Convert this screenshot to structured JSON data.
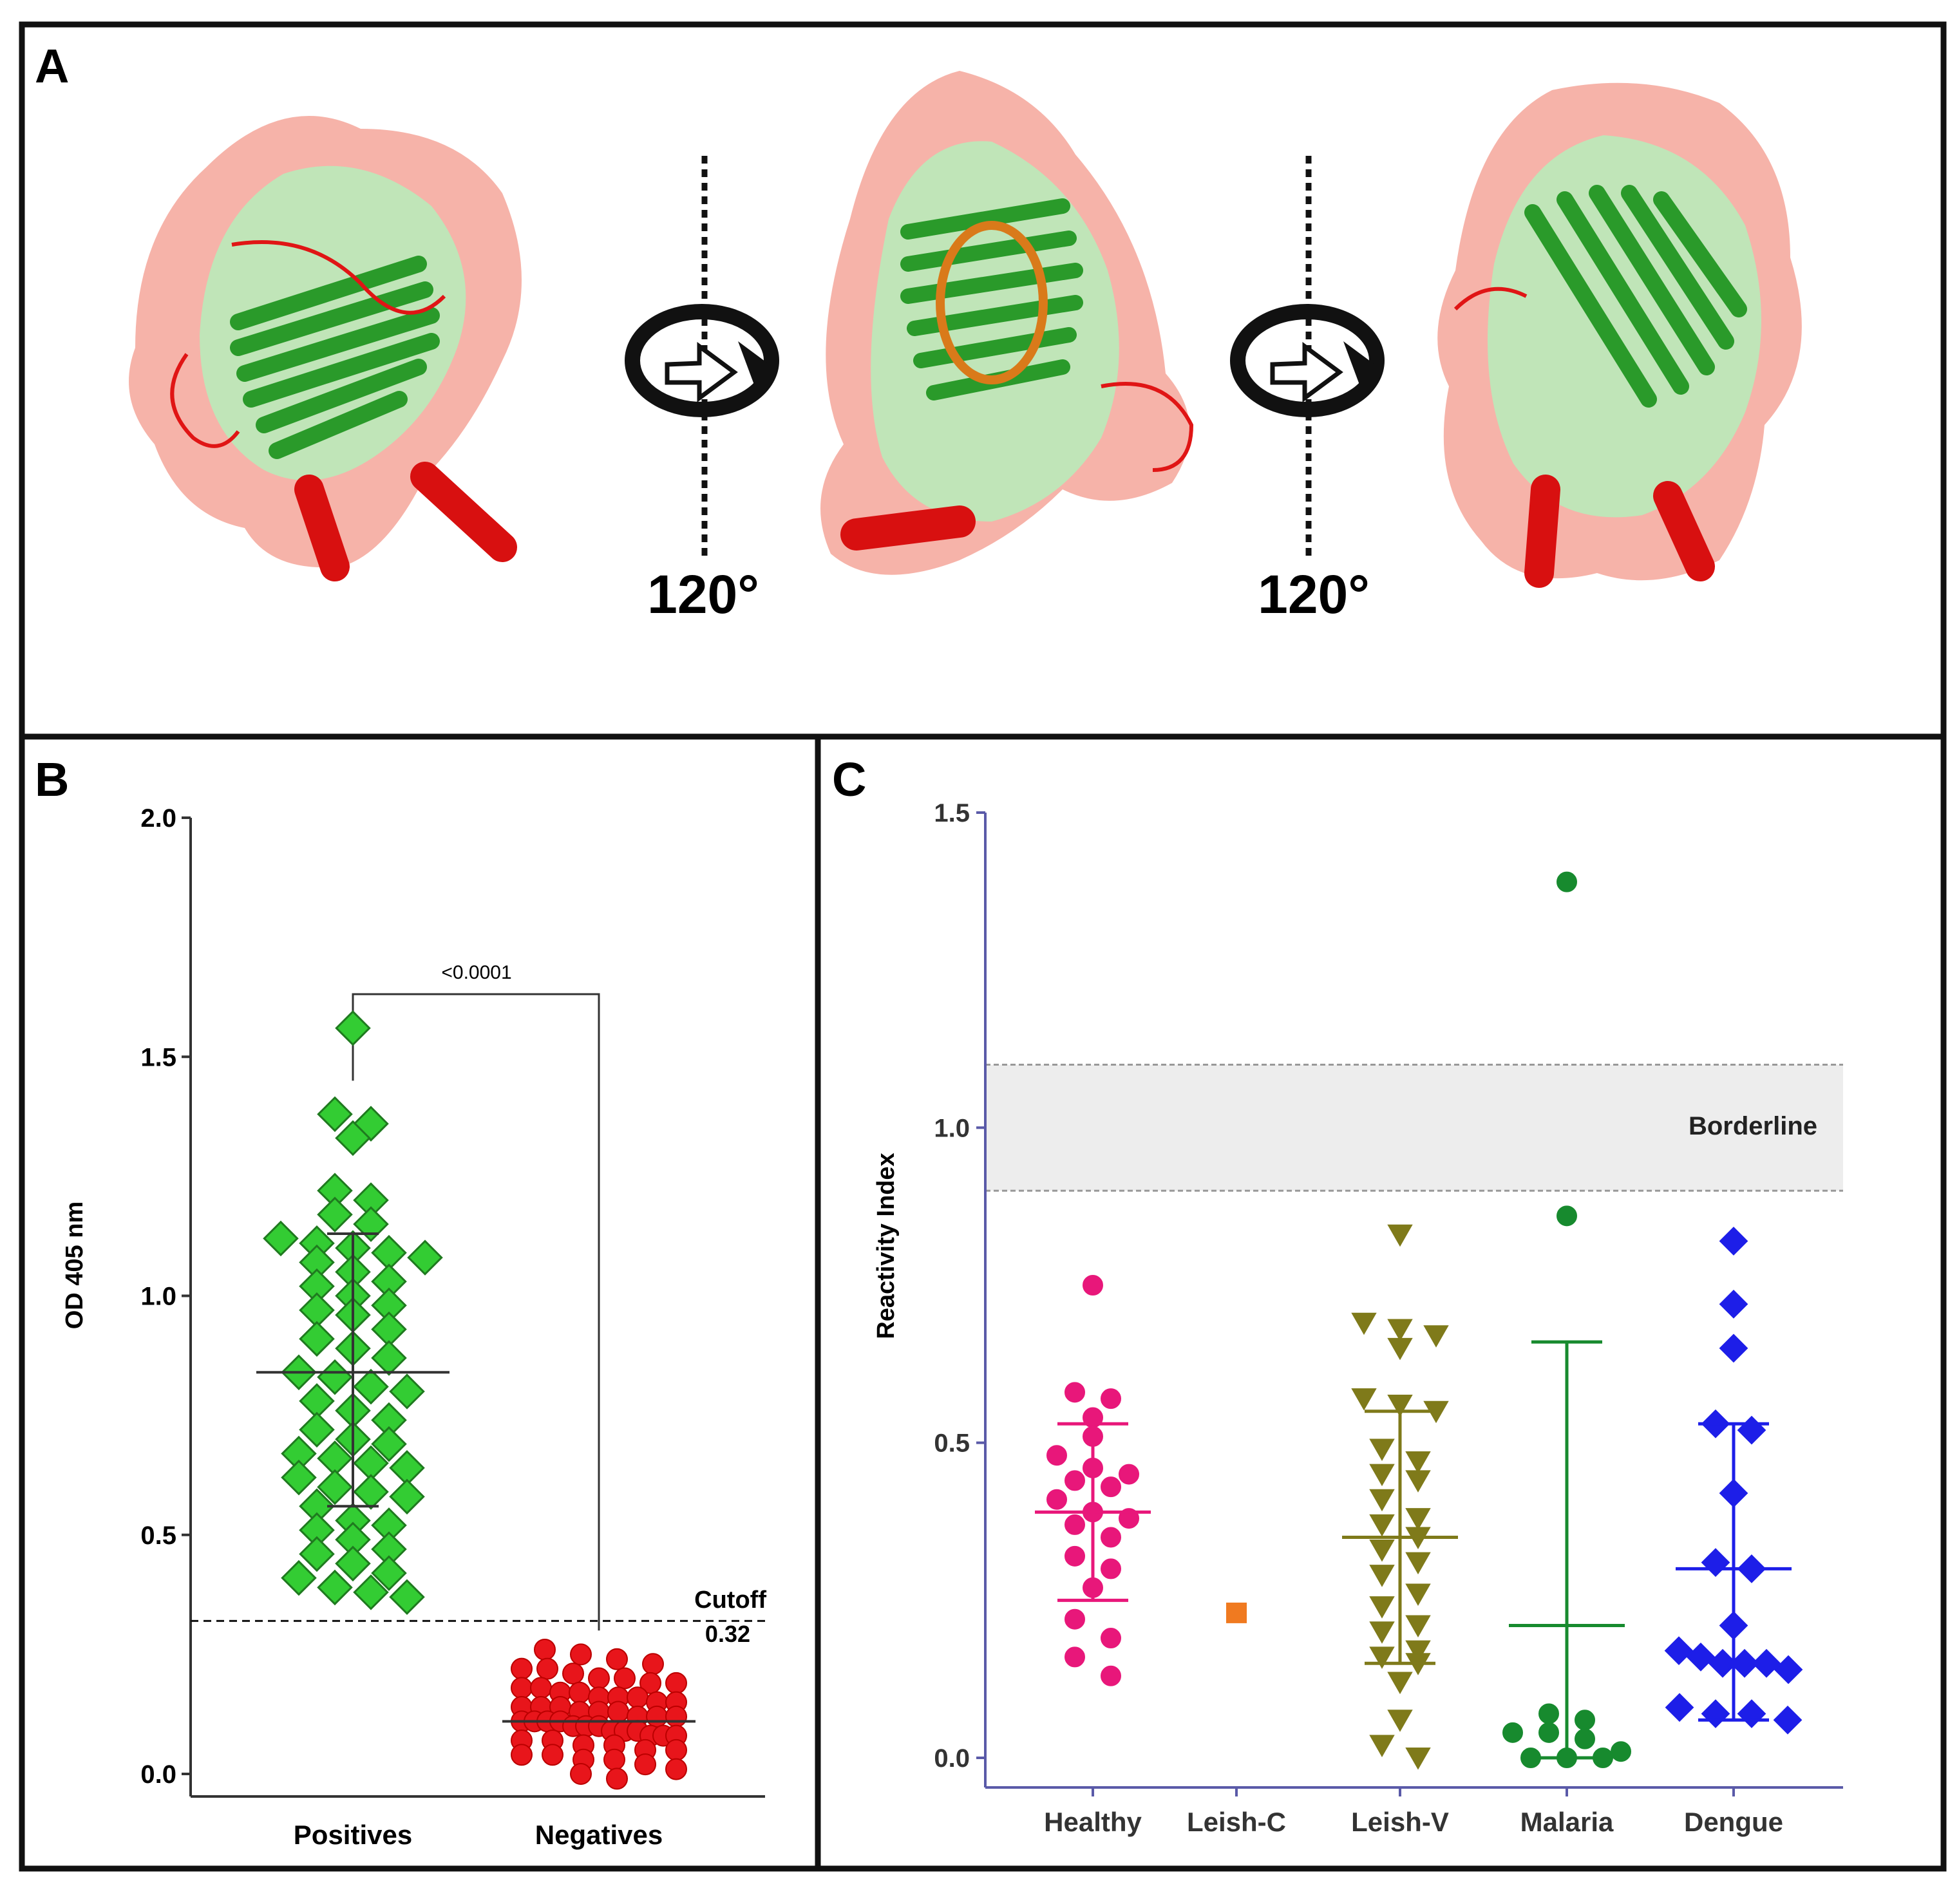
{
  "panel_a": {
    "label": "A",
    "rotation_labels": [
      "120°",
      "120°"
    ]
  },
  "panel_b": {
    "label": "B",
    "ylabel": "OD 405 nm",
    "cutoff_label": "Cutoff",
    "cutoff_value_label": "0.32",
    "significance_label": "<0.0001"
  },
  "panel_c": {
    "label": "C",
    "ylabel": "Reactivity Index",
    "band_label": "Borderline"
  },
  "chart_data": [
    {
      "panel": "B",
      "type": "scatter",
      "ylabel": "OD 405 nm",
      "ylim": [
        0,
        2.0
      ],
      "yticks": [
        "0.0",
        "0.5",
        "1.0",
        "1.5",
        "2.0"
      ],
      "categories": [
        "Positives",
        "Negatives"
      ],
      "cutoff": 0.32,
      "cutoff_label": "Cutoff",
      "annotation": "<0.0001",
      "colors": {
        "Positives": "#33cc33",
        "Negatives": "#e8151b"
      },
      "series": [
        {
          "category": "Positives",
          "marker": "diamond",
          "mean": 0.84,
          "sd_low": 0.56,
          "sd_high": 1.13,
          "values": [
            1.56,
            1.38,
            1.36,
            1.33,
            1.22,
            1.2,
            1.17,
            1.15,
            1.12,
            1.11,
            1.1,
            1.09,
            1.08,
            1.07,
            1.05,
            1.03,
            1.02,
            1.0,
            0.98,
            0.97,
            0.96,
            0.93,
            0.91,
            0.89,
            0.87,
            0.84,
            0.83,
            0.81,
            0.8,
            0.78,
            0.76,
            0.74,
            0.72,
            0.7,
            0.69,
            0.67,
            0.66,
            0.65,
            0.64,
            0.62,
            0.6,
            0.59,
            0.58,
            0.56,
            0.53,
            0.52,
            0.51,
            0.49,
            0.47,
            0.46,
            0.44,
            0.42,
            0.41,
            0.39,
            0.38,
            0.37
          ]
        },
        {
          "category": "Negatives",
          "marker": "circle",
          "mean": 0.11,
          "values": [
            0.26,
            0.25,
            0.24,
            0.23,
            0.22,
            0.22,
            0.21,
            0.2,
            0.2,
            0.19,
            0.19,
            0.18,
            0.18,
            0.17,
            0.17,
            0.16,
            0.16,
            0.16,
            0.15,
            0.15,
            0.14,
            0.14,
            0.14,
            0.13,
            0.13,
            0.13,
            0.12,
            0.12,
            0.12,
            0.11,
            0.11,
            0.11,
            0.11,
            0.1,
            0.1,
            0.1,
            0.09,
            0.09,
            0.09,
            0.08,
            0.08,
            0.08,
            0.07,
            0.07,
            0.06,
            0.06,
            0.05,
            0.05,
            0.04,
            0.04,
            0.03,
            0.03,
            0.02,
            0.01,
            0.0,
            -0.01
          ]
        }
      ]
    },
    {
      "panel": "C",
      "type": "scatter",
      "ylabel": "Reactivity Index",
      "ylim": [
        0,
        1.5
      ],
      "yticks": [
        "0.0",
        "0.5",
        "1.0",
        "1.5"
      ],
      "categories": [
        "Healthy",
        "Leish-C",
        "Leish-V",
        "Malaria",
        "Dengue"
      ],
      "band": {
        "low": 0.9,
        "high": 1.1,
        "label": "Borderline"
      },
      "series": [
        {
          "category": "Healthy",
          "marker": "circle",
          "color": "#e8177a",
          "mean": 0.39,
          "sd_low": 0.25,
          "sd_high": 0.53,
          "values": [
            0.75,
            0.58,
            0.57,
            0.54,
            0.51,
            0.48,
            0.46,
            0.45,
            0.44,
            0.43,
            0.41,
            0.39,
            0.38,
            0.37,
            0.35,
            0.32,
            0.3,
            0.27,
            0.22,
            0.19,
            0.16,
            0.13
          ]
        },
        {
          "category": "Leish-C",
          "marker": "square",
          "color": "#f07a20",
          "values": [
            0.23
          ]
        },
        {
          "category": "Leish-V",
          "marker": "triangle-down",
          "color": "#7f7a1a",
          "mean": 0.35,
          "sd_low": 0.15,
          "sd_high": 0.55,
          "values": [
            0.83,
            0.69,
            0.68,
            0.67,
            0.65,
            0.57,
            0.56,
            0.55,
            0.49,
            0.47,
            0.45,
            0.44,
            0.41,
            0.38,
            0.37,
            0.35,
            0.33,
            0.31,
            0.29,
            0.26,
            0.24,
            0.21,
            0.2,
            0.17,
            0.16,
            0.15,
            0.12,
            0.06,
            0.02,
            0.0
          ]
        },
        {
          "category": "Malaria",
          "marker": "circle",
          "color": "#178a2e",
          "mean": 0.21,
          "sd_low": 0.0,
          "sd_high": 0.66,
          "values": [
            1.39,
            0.86,
            0.07,
            0.06,
            0.04,
            0.04,
            0.03,
            0.01,
            0.0,
            0.0,
            0.0
          ]
        },
        {
          "category": "Dengue",
          "marker": "diamond",
          "color": "#1d1ee8",
          "mean": 0.3,
          "sd_low": 0.06,
          "sd_high": 0.53,
          "values": [
            0.82,
            0.72,
            0.65,
            0.53,
            0.52,
            0.42,
            0.31,
            0.3,
            0.21,
            0.17,
            0.16,
            0.15,
            0.15,
            0.15,
            0.14,
            0.08,
            0.07,
            0.07,
            0.06
          ]
        }
      ]
    }
  ]
}
